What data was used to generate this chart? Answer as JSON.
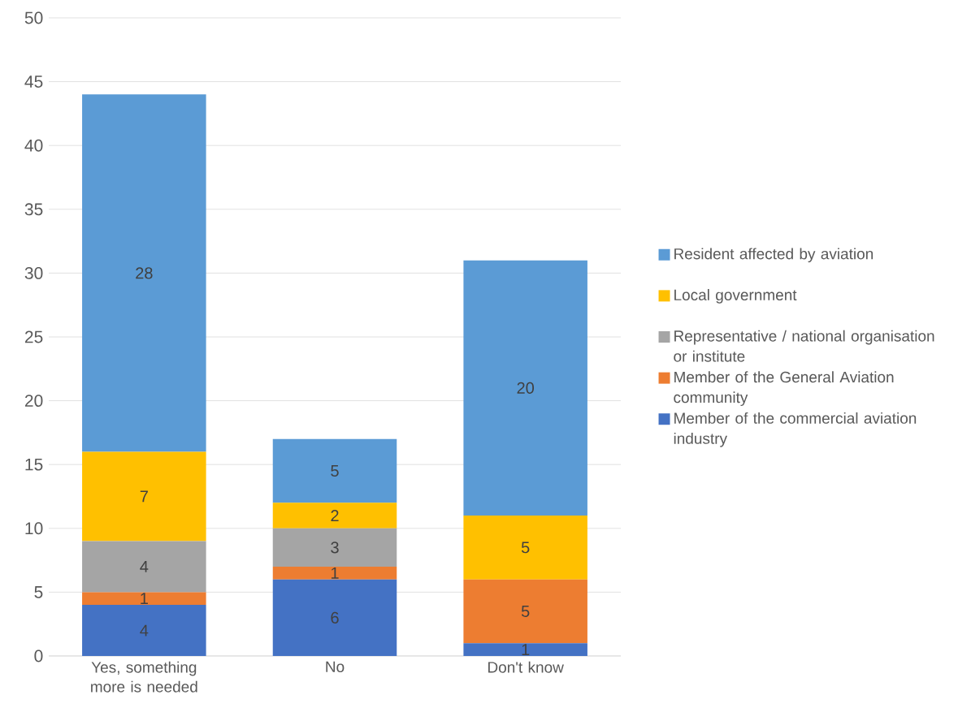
{
  "chart_data": {
    "type": "bar",
    "stacked": true,
    "categories": [
      "Yes, something more is needed",
      "No",
      "Don't know"
    ],
    "series": [
      {
        "name": "Member of the commercial aviation industry",
        "color": "#4472c4",
        "values": [
          4,
          6,
          1
        ],
        "value_labels": [
          "4",
          "6",
          "1"
        ]
      },
      {
        "name": "Member of the General Aviation community",
        "color": "#ed7d31",
        "values": [
          1,
          1,
          5
        ],
        "value_labels": [
          "1",
          "1",
          "5"
        ]
      },
      {
        "name": "Representative / national organisation or institute",
        "color": "#a5a5a5",
        "values": [
          4,
          3,
          0
        ],
        "value_labels": [
          "4",
          "3",
          null
        ]
      },
      {
        "name": "Local government",
        "color": "#ffc000",
        "values": [
          7,
          2,
          5
        ],
        "value_labels": [
          "7",
          "2",
          "5"
        ]
      },
      {
        "name": "Resident affected by aviation",
        "color": "#5b9bd5",
        "values": [
          28,
          5,
          20
        ],
        "value_labels": [
          "28",
          "5",
          "20"
        ]
      }
    ],
    "ylim": [
      0,
      50
    ],
    "yticks": [
      0,
      5,
      10,
      15,
      20,
      25,
      30,
      35,
      40,
      45,
      50
    ],
    "grid": "y",
    "legend": "right"
  }
}
